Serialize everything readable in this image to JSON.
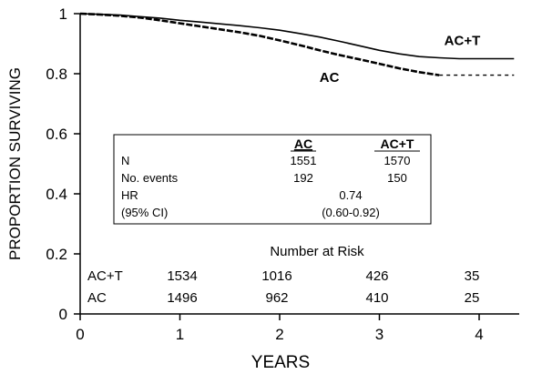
{
  "chart_data": {
    "type": "line",
    "xlabel": "YEARS",
    "ylabel": "PROPORTION SURVIVING",
    "xlim": [
      0,
      4.5
    ],
    "ylim": [
      0,
      1
    ],
    "x_ticks": [
      "0",
      "1",
      "2",
      "3",
      "4"
    ],
    "y_ticks": [
      "0",
      "0.2",
      "0.4",
      "0.6",
      "0.8",
      "1"
    ],
    "x_tick_values": [
      0,
      1,
      2,
      3,
      4
    ],
    "y_tick_values": [
      0,
      0.2,
      0.4,
      0.6,
      0.8,
      1
    ],
    "grid": false,
    "series": [
      {
        "name": "AC+T",
        "style": "solid",
        "x": [
          0,
          0.2,
          0.4,
          0.6,
          0.8,
          1.0,
          1.2,
          1.4,
          1.6,
          1.8,
          2.0,
          2.2,
          2.4,
          2.6,
          2.8,
          3.0,
          3.2,
          3.4,
          3.6,
          3.8,
          4.0,
          4.2,
          4.35
        ],
        "y": [
          1.0,
          0.998,
          0.995,
          0.99,
          0.985,
          0.978,
          0.972,
          0.966,
          0.96,
          0.953,
          0.945,
          0.934,
          0.922,
          0.908,
          0.893,
          0.878,
          0.866,
          0.857,
          0.853,
          0.85,
          0.85,
          0.85,
          0.85
        ]
      },
      {
        "name": "AC",
        "style": "dashed",
        "x": [
          0,
          0.2,
          0.4,
          0.6,
          0.8,
          1.0,
          1.2,
          1.4,
          1.6,
          1.8,
          2.0,
          2.2,
          2.4,
          2.6,
          2.8,
          3.0,
          3.2,
          3.4,
          3.6
        ],
        "y": [
          1.0,
          0.997,
          0.993,
          0.987,
          0.978,
          0.968,
          0.958,
          0.948,
          0.938,
          0.926,
          0.911,
          0.895,
          0.878,
          0.862,
          0.848,
          0.833,
          0.818,
          0.805,
          0.795
        ]
      },
      {
        "name": "AC (extension)",
        "style": "dotted",
        "x": [
          3.6,
          4.35
        ],
        "y": [
          0.795,
          0.795
        ]
      }
    ],
    "annotations": [
      {
        "text": "AC+T",
        "x": 3.65,
        "y": 0.895
      },
      {
        "text": "AC",
        "x": 2.4,
        "y": 0.772
      }
    ]
  },
  "summary_box": {
    "columns": [
      "AC",
      "AC+T"
    ],
    "rows": [
      {
        "label": "N",
        "ac": "1551",
        "act": "1570"
      },
      {
        "label": "No. events",
        "ac": "192",
        "act": "150"
      },
      {
        "label": "HR",
        "value": "0.74"
      },
      {
        "label": "(95% CI)",
        "value": "(0.60-0.92)"
      }
    ]
  },
  "risk_table": {
    "title": "Number at Risk",
    "rows": [
      {
        "label": "AC+T",
        "values": [
          "1534",
          "1016",
          "426",
          "35"
        ]
      },
      {
        "label": "AC",
        "values": [
          "1496",
          "962",
          "410",
          "25"
        ]
      }
    ]
  }
}
